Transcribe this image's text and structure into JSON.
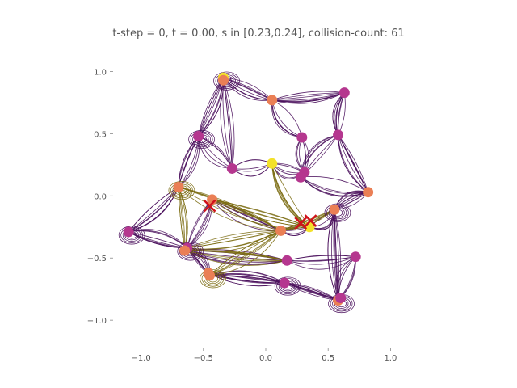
{
  "title": "t-step = 0, t = 0.00, s in [0.23,0.24], collision-count: 61",
  "chart_data": {
    "type": "scatter",
    "title": "t-step = 0, t = 0.00, s in [0.23,0.24], collision-count: 61",
    "xlabel": "",
    "ylabel": "",
    "xlim": [
      -1.25,
      1.25
    ],
    "ylim": [
      -1.22,
      1.12
    ],
    "grid": false,
    "x_ticks": [
      -1.0,
      -0.5,
      0.0,
      0.5,
      1.0
    ],
    "x_tick_labels": [
      "−1.0",
      "−0.5",
      "0.0",
      "0.5",
      "1.0"
    ],
    "y_ticks": [
      1.0,
      0.5,
      0.0,
      -0.5,
      -1.0
    ],
    "y_tick_labels": [
      "1.0",
      "0.5",
      "0.0",
      "−0.5",
      "−1.0"
    ],
    "colors": {
      "purple": "#4a0f5c",
      "olive": "#7a6a10",
      "magenta": "#b5378f",
      "orange": "#ea7f55",
      "yellow": "#f3e12a",
      "cross": "#d0121a"
    },
    "points": [
      {
        "x": -0.34,
        "y": 0.95,
        "c": "yellow"
      },
      {
        "x": -0.34,
        "y": 0.93,
        "c": "orange"
      },
      {
        "x": 0.05,
        "y": 0.77,
        "c": "orange"
      },
      {
        "x": 0.63,
        "y": 0.83,
        "c": "magenta"
      },
      {
        "x": -0.54,
        "y": 0.48,
        "c": "magenta"
      },
      {
        "x": 0.29,
        "y": 0.47,
        "c": "magenta"
      },
      {
        "x": 0.58,
        "y": 0.49,
        "c": "magenta"
      },
      {
        "x": -0.27,
        "y": 0.22,
        "c": "magenta"
      },
      {
        "x": 0.05,
        "y": 0.26,
        "c": "yellow"
      },
      {
        "x": 0.31,
        "y": 0.19,
        "c": "magenta"
      },
      {
        "x": 0.28,
        "y": 0.15,
        "c": "magenta"
      },
      {
        "x": -0.7,
        "y": 0.07,
        "c": "orange"
      },
      {
        "x": -0.43,
        "y": -0.03,
        "c": "orange"
      },
      {
        "x": 0.82,
        "y": 0.03,
        "c": "orange"
      },
      {
        "x": 0.55,
        "y": -0.11,
        "c": "orange"
      },
      {
        "x": -1.1,
        "y": -0.29,
        "c": "magenta"
      },
      {
        "x": 0.12,
        "y": -0.28,
        "c": "orange"
      },
      {
        "x": 0.35,
        "y": -0.25,
        "c": "yellow"
      },
      {
        "x": -0.63,
        "y": -0.42,
        "c": "magenta"
      },
      {
        "x": -0.65,
        "y": -0.44,
        "c": "orange"
      },
      {
        "x": 0.17,
        "y": -0.52,
        "c": "magenta"
      },
      {
        "x": 0.72,
        "y": -0.49,
        "c": "magenta"
      },
      {
        "x": -0.45,
        "y": -0.64,
        "c": "orange"
      },
      {
        "x": -0.46,
        "y": -0.62,
        "c": "orange"
      },
      {
        "x": 0.15,
        "y": -0.7,
        "c": "magenta"
      },
      {
        "x": 0.58,
        "y": -0.84,
        "c": "orange"
      },
      {
        "x": 0.6,
        "y": -0.82,
        "c": "magenta"
      }
    ],
    "crosses": [
      {
        "x": -0.45,
        "y": -0.08
      },
      {
        "x": 0.28,
        "y": -0.22
      },
      {
        "x": 0.36,
        "y": -0.2
      }
    ]
  }
}
